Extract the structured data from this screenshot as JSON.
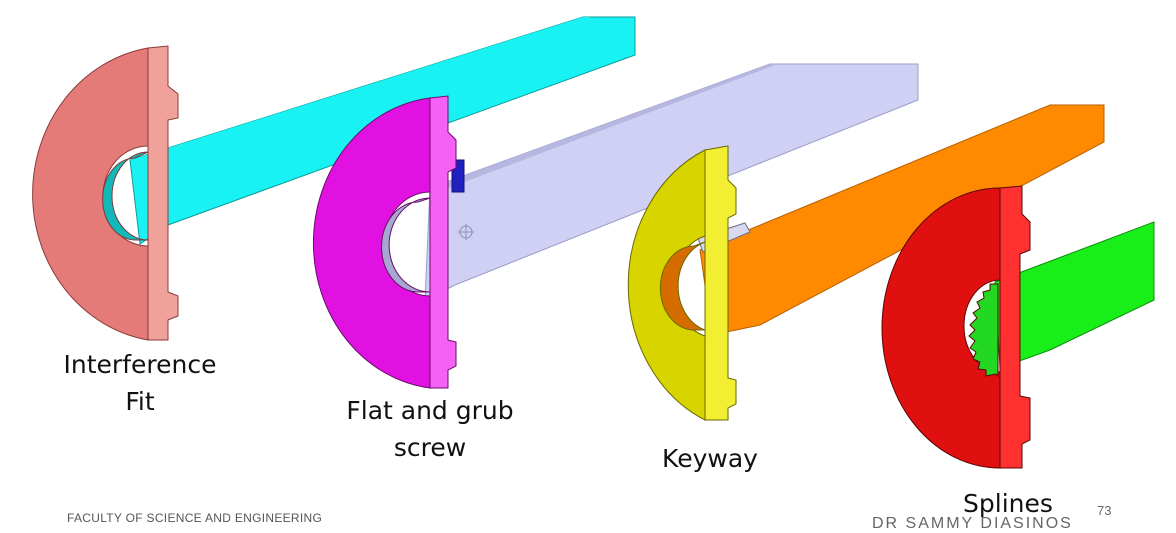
{
  "slide": {
    "page_number": "73",
    "footer_text": "FACULTY OF SCIENCE AND ENGINEERING",
    "author_text": "DR SAMMY DIASINOS"
  },
  "figures": [
    {
      "label_lines": [
        "Interference",
        "Fit"
      ],
      "hub_color": "#e47b79",
      "hub_side_color": "#f0a19a",
      "shaft_color": "#18f2f2"
    },
    {
      "label_lines": [
        "Flat and grub",
        "screw"
      ],
      "hub_color": "#e112e1",
      "hub_side_color": "#f461f4",
      "shaft_color": "#cfd0f4"
    },
    {
      "label_lines": [
        "Keyway"
      ],
      "hub_color": "#d8d400",
      "hub_side_color": "#f2ef33",
      "shaft_color": "#ff8a00"
    },
    {
      "label_lines": [
        "Splines"
      ],
      "hub_color": "#e01010",
      "hub_side_color": "#ff3030",
      "shaft_color": "#18ef18"
    }
  ]
}
